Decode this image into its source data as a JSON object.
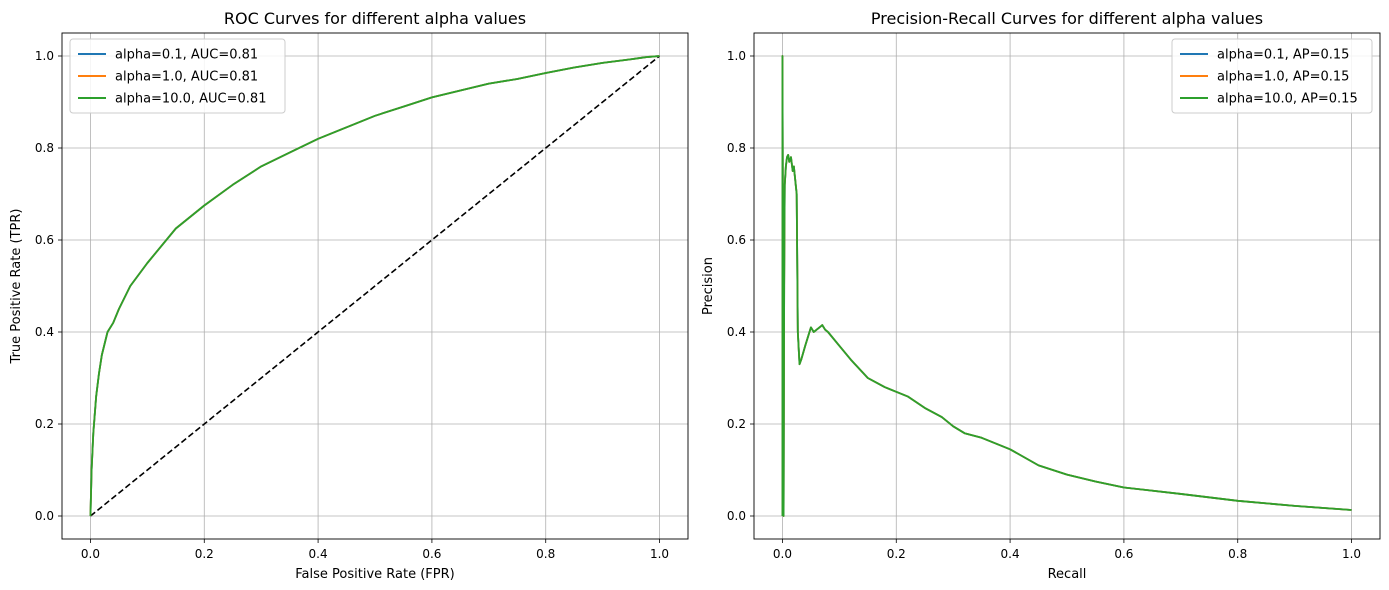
{
  "chart_data": [
    {
      "type": "line",
      "title": "ROC Curves for different alpha values",
      "xlabel": "False Positive Rate (FPR)",
      "ylabel": "True Positive Rate (TPR)",
      "xlim": [
        -0.05,
        1.05
      ],
      "ylim": [
        -0.05,
        1.05
      ],
      "xticks": [
        "0.0",
        "0.2",
        "0.4",
        "0.6",
        "0.8",
        "1.0"
      ],
      "yticks": [
        "0.0",
        "0.2",
        "0.4",
        "0.6",
        "0.8",
        "1.0"
      ],
      "grid": true,
      "legend_position": "top-left",
      "series": [
        {
          "name": "alpha=0.1, AUC=0.81",
          "color": "#1f77b4",
          "x": [
            0,
            0.002,
            0.005,
            0.01,
            0.015,
            0.02,
            0.03,
            0.04,
            0.05,
            0.07,
            0.1,
            0.15,
            0.2,
            0.25,
            0.3,
            0.35,
            0.4,
            0.45,
            0.5,
            0.55,
            0.6,
            0.65,
            0.7,
            0.75,
            0.8,
            0.85,
            0.9,
            0.95,
            0.98,
            1.0
          ],
          "y": [
            0,
            0.1,
            0.18,
            0.26,
            0.31,
            0.35,
            0.4,
            0.42,
            0.45,
            0.5,
            0.55,
            0.625,
            0.675,
            0.72,
            0.76,
            0.79,
            0.82,
            0.845,
            0.87,
            0.89,
            0.91,
            0.925,
            0.94,
            0.95,
            0.963,
            0.975,
            0.985,
            0.993,
            0.998,
            1.0
          ]
        },
        {
          "name": "alpha=1.0, AUC=0.81",
          "color": "#ff7f0e",
          "x": [
            0,
            0.002,
            0.005,
            0.01,
            0.015,
            0.02,
            0.03,
            0.04,
            0.05,
            0.07,
            0.1,
            0.15,
            0.2,
            0.25,
            0.3,
            0.35,
            0.4,
            0.45,
            0.5,
            0.55,
            0.6,
            0.65,
            0.7,
            0.75,
            0.8,
            0.85,
            0.9,
            0.95,
            0.98,
            1.0
          ],
          "y": [
            0,
            0.1,
            0.18,
            0.26,
            0.31,
            0.35,
            0.4,
            0.42,
            0.45,
            0.5,
            0.55,
            0.625,
            0.675,
            0.72,
            0.76,
            0.79,
            0.82,
            0.845,
            0.87,
            0.89,
            0.91,
            0.925,
            0.94,
            0.95,
            0.963,
            0.975,
            0.985,
            0.993,
            0.998,
            1.0
          ]
        },
        {
          "name": "alpha=10.0, AUC=0.81",
          "color": "#2ca02c",
          "x": [
            0,
            0.002,
            0.005,
            0.01,
            0.015,
            0.02,
            0.03,
            0.04,
            0.05,
            0.07,
            0.1,
            0.15,
            0.2,
            0.25,
            0.3,
            0.35,
            0.4,
            0.45,
            0.5,
            0.55,
            0.6,
            0.65,
            0.7,
            0.75,
            0.8,
            0.85,
            0.9,
            0.95,
            0.98,
            1.0
          ],
          "y": [
            0,
            0.1,
            0.18,
            0.26,
            0.31,
            0.35,
            0.4,
            0.42,
            0.45,
            0.5,
            0.55,
            0.625,
            0.675,
            0.72,
            0.76,
            0.79,
            0.82,
            0.845,
            0.87,
            0.89,
            0.91,
            0.925,
            0.94,
            0.95,
            0.963,
            0.975,
            0.985,
            0.993,
            0.998,
            1.0
          ]
        }
      ],
      "reference_line": {
        "x": [
          0,
          1
        ],
        "y": [
          0,
          1
        ],
        "color": "#000000",
        "style": "dashed"
      }
    },
    {
      "type": "line",
      "title": "Precision-Recall Curves for different alpha values",
      "xlabel": "Recall",
      "ylabel": "Precision",
      "xlim": [
        -0.05,
        1.05
      ],
      "ylim": [
        -0.05,
        1.05
      ],
      "xticks": [
        "0.0",
        "0.2",
        "0.4",
        "0.6",
        "0.8",
        "1.0"
      ],
      "yticks": [
        "0.0",
        "0.2",
        "0.4",
        "0.6",
        "0.8",
        "1.0"
      ],
      "grid": true,
      "legend_position": "top-right",
      "series": [
        {
          "name": "alpha=0.1, AP=0.15",
          "color": "#1f77b4",
          "x": [
            0,
            0,
            0.001,
            0.002,
            0.003,
            0.004,
            0.006,
            0.008,
            0.01,
            0.012,
            0.015,
            0.018,
            0.02,
            0.025,
            0.027,
            0.03,
            0.033,
            0.04,
            0.05,
            0.055,
            0.06,
            0.065,
            0.07,
            0.075,
            0.08,
            0.1,
            0.12,
            0.15,
            0.18,
            0.2,
            0.22,
            0.25,
            0.28,
            0.3,
            0.32,
            0.35,
            0.4,
            0.45,
            0.5,
            0.55,
            0.6,
            0.7,
            0.8,
            0.9,
            1.0
          ],
          "y": [
            0,
            1.0,
            0.55,
            0.0,
            0.5,
            0.72,
            0.76,
            0.78,
            0.785,
            0.77,
            0.78,
            0.75,
            0.76,
            0.7,
            0.4,
            0.33,
            0.34,
            0.37,
            0.41,
            0.4,
            0.405,
            0.41,
            0.415,
            0.405,
            0.4,
            0.37,
            0.34,
            0.3,
            0.28,
            0.27,
            0.26,
            0.235,
            0.215,
            0.195,
            0.18,
            0.17,
            0.145,
            0.11,
            0.09,
            0.075,
            0.062,
            0.048,
            0.033,
            0.022,
            0.013
          ]
        },
        {
          "name": "alpha=1.0, AP=0.15",
          "color": "#ff7f0e",
          "x": [
            0,
            0,
            0.001,
            0.002,
            0.003,
            0.004,
            0.006,
            0.008,
            0.01,
            0.012,
            0.015,
            0.018,
            0.02,
            0.025,
            0.027,
            0.03,
            0.033,
            0.04,
            0.05,
            0.055,
            0.06,
            0.065,
            0.07,
            0.075,
            0.08,
            0.1,
            0.12,
            0.15,
            0.18,
            0.2,
            0.22,
            0.25,
            0.28,
            0.3,
            0.32,
            0.35,
            0.4,
            0.45,
            0.5,
            0.55,
            0.6,
            0.7,
            0.8,
            0.9,
            1.0
          ],
          "y": [
            0,
            1.0,
            0.55,
            0.0,
            0.5,
            0.72,
            0.76,
            0.78,
            0.785,
            0.77,
            0.78,
            0.75,
            0.76,
            0.7,
            0.4,
            0.33,
            0.34,
            0.37,
            0.41,
            0.4,
            0.405,
            0.41,
            0.415,
            0.405,
            0.4,
            0.37,
            0.34,
            0.3,
            0.28,
            0.27,
            0.26,
            0.235,
            0.215,
            0.195,
            0.18,
            0.17,
            0.145,
            0.11,
            0.09,
            0.075,
            0.062,
            0.048,
            0.033,
            0.022,
            0.013
          ]
        },
        {
          "name": "alpha=10.0, AP=0.15",
          "color": "#2ca02c",
          "x": [
            0,
            0,
            0.001,
            0.002,
            0.003,
            0.004,
            0.006,
            0.008,
            0.01,
            0.012,
            0.015,
            0.018,
            0.02,
            0.025,
            0.027,
            0.03,
            0.033,
            0.04,
            0.05,
            0.055,
            0.06,
            0.065,
            0.07,
            0.075,
            0.08,
            0.1,
            0.12,
            0.15,
            0.18,
            0.2,
            0.22,
            0.25,
            0.28,
            0.3,
            0.32,
            0.35,
            0.4,
            0.45,
            0.5,
            0.55,
            0.6,
            0.7,
            0.8,
            0.9,
            1.0
          ],
          "y": [
            0,
            1.0,
            0.55,
            0.0,
            0.5,
            0.72,
            0.76,
            0.78,
            0.785,
            0.77,
            0.78,
            0.75,
            0.76,
            0.7,
            0.4,
            0.33,
            0.34,
            0.37,
            0.41,
            0.4,
            0.405,
            0.41,
            0.415,
            0.405,
            0.4,
            0.37,
            0.34,
            0.3,
            0.28,
            0.27,
            0.26,
            0.235,
            0.215,
            0.195,
            0.18,
            0.17,
            0.145,
            0.11,
            0.09,
            0.075,
            0.062,
            0.048,
            0.033,
            0.022,
            0.013
          ]
        }
      ]
    }
  ]
}
